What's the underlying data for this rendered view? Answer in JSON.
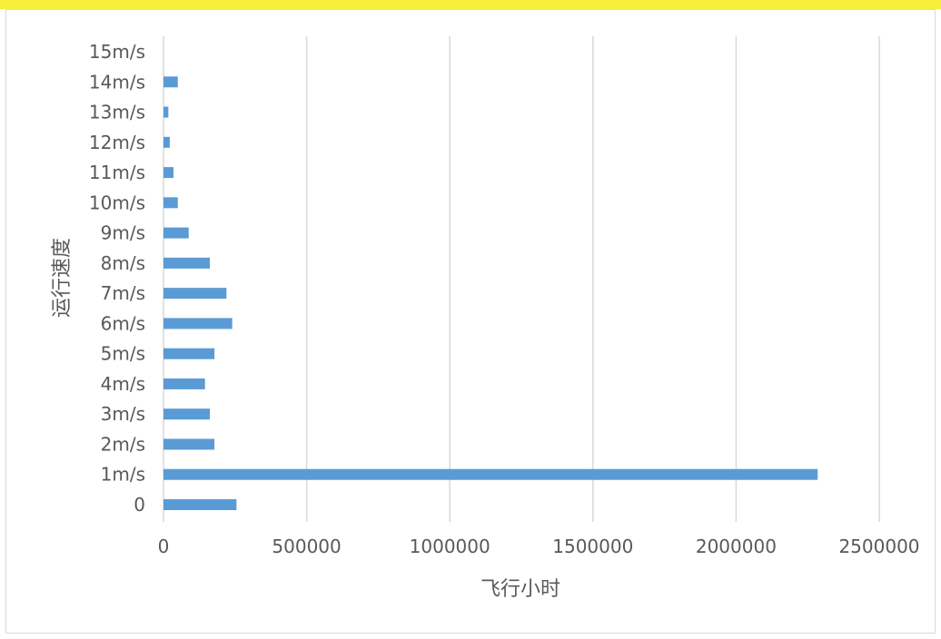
{
  "chart_data": {
    "type": "bar",
    "orientation": "horizontal",
    "categories": [
      "0",
      "1m/s",
      "2m/s",
      "3m/s",
      "4m/s",
      "5m/s",
      "6m/s",
      "7m/s",
      "8m/s",
      "9m/s",
      "10m/s",
      "11m/s",
      "12m/s",
      "13m/s",
      "14m/s",
      "15m/s"
    ],
    "values": [
      255000,
      2285000,
      178000,
      162000,
      145000,
      178000,
      240000,
      220000,
      162000,
      88000,
      50000,
      35000,
      22000,
      17000,
      50000,
      0
    ],
    "title": "",
    "xlabel": "飞行小时",
    "ylabel": "运行速度",
    "xlim": [
      0,
      2500000
    ],
    "xticks": [
      "0",
      "500000",
      "1000000",
      "1500000",
      "2000000",
      "2500000"
    ],
    "grid": true,
    "bar_color": "#5b9bd5",
    "grid_color": "#d9d9d9"
  }
}
